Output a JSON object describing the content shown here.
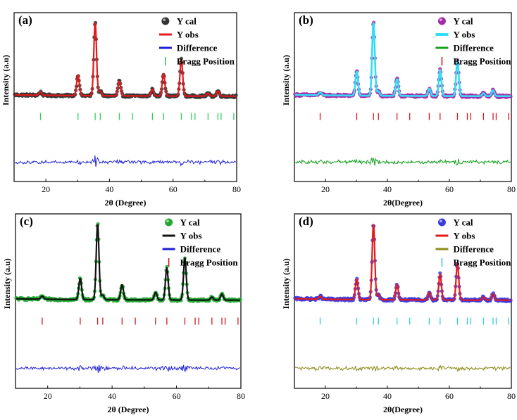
{
  "chart_data": [
    {
      "type": "line",
      "panel_label": "(a)",
      "xlabel": "2θ (Degree)",
      "ylabel": "Intensity (a.u)",
      "xlim": [
        10,
        80
      ],
      "xticks": [
        20,
        40,
        60,
        80
      ],
      "legend_position": "top-right",
      "series": [
        {
          "name": "Y cal",
          "style": "circle",
          "color": "#333333"
        },
        {
          "name": "Y obs",
          "style": "line",
          "color": "#e31a1c"
        },
        {
          "name": "Difference",
          "style": "line",
          "color": "#1f1fd6"
        },
        {
          "name": "Bragg Position",
          "style": "tick",
          "color": "#2ed158"
        }
      ],
      "peaks": [
        {
          "x": 18.3,
          "intensity": 4
        },
        {
          "x": 30.1,
          "intensity": 28
        },
        {
          "x": 35.5,
          "intensity": 100
        },
        {
          "x": 37.1,
          "intensity": 6
        },
        {
          "x": 43.1,
          "intensity": 20
        },
        {
          "x": 53.5,
          "intensity": 9
        },
        {
          "x": 57.0,
          "intensity": 30
        },
        {
          "x": 62.6,
          "intensity": 50
        },
        {
          "x": 71.0,
          "intensity": 4
        },
        {
          "x": 74.1,
          "intensity": 7
        }
      ],
      "bragg_positions": [
        18.3,
        30.1,
        35.5,
        37.1,
        43.1,
        47.2,
        53.5,
        57.0,
        62.6,
        65.8,
        66.9,
        71.0,
        74.1,
        75.1,
        79.1
      ]
    },
    {
      "type": "line",
      "panel_label": "(b)",
      "xlabel": "2θ(Degree)",
      "ylabel": "Intensity (a.u)",
      "xlim": [
        10,
        80
      ],
      "xticks": [
        20,
        40,
        60,
        80
      ],
      "legend_position": "top-right",
      "series": [
        {
          "name": "Y cal",
          "style": "circle",
          "color": "#a12aa8"
        },
        {
          "name": "Y obs",
          "style": "line",
          "color": "#33ddf5"
        },
        {
          "name": "Difference",
          "style": "line",
          "color": "#17a11f"
        },
        {
          "name": "Bragg Position",
          "style": "tick",
          "color": "#d7191c"
        }
      ],
      "peaks": [
        {
          "x": 18.3,
          "intensity": 4
        },
        {
          "x": 30.1,
          "intensity": 33
        },
        {
          "x": 35.5,
          "intensity": 100
        },
        {
          "x": 37.1,
          "intensity": 6
        },
        {
          "x": 43.1,
          "intensity": 23
        },
        {
          "x": 53.5,
          "intensity": 10
        },
        {
          "x": 57.0,
          "intensity": 35
        },
        {
          "x": 62.6,
          "intensity": 48
        },
        {
          "x": 71.0,
          "intensity": 4
        },
        {
          "x": 74.1,
          "intensity": 8
        }
      ],
      "bragg_positions": [
        18.3,
        30.1,
        35.5,
        37.1,
        43.1,
        47.2,
        53.5,
        57.0,
        62.6,
        65.8,
        66.9,
        71.0,
        74.1,
        75.1,
        79.1
      ]
    },
    {
      "type": "line",
      "panel_label": "(c)",
      "xlabel": "2θ (Degree)",
      "ylabel": "Intensity (a.u)",
      "xlim": [
        10,
        80
      ],
      "xticks": [
        20,
        40,
        60,
        80
      ],
      "legend_position": "top-right",
      "series": [
        {
          "name": "Y cal",
          "style": "circle",
          "color": "#22a833"
        },
        {
          "name": "Y obs",
          "style": "line",
          "color": "#111111"
        },
        {
          "name": "Difference",
          "style": "line",
          "color": "#1f1fd6"
        },
        {
          "name": "Bragg Position",
          "style": "tick",
          "color": "#d7191c"
        }
      ],
      "peaks": [
        {
          "x": 18.3,
          "intensity": 4
        },
        {
          "x": 30.1,
          "intensity": 28
        },
        {
          "x": 35.5,
          "intensity": 100
        },
        {
          "x": 37.1,
          "intensity": 6
        },
        {
          "x": 43.1,
          "intensity": 20
        },
        {
          "x": 53.5,
          "intensity": 10
        },
        {
          "x": 57.0,
          "intensity": 42
        },
        {
          "x": 62.6,
          "intensity": 55
        },
        {
          "x": 71.0,
          "intensity": 4
        },
        {
          "x": 74.1,
          "intensity": 8
        }
      ],
      "bragg_positions": [
        18.3,
        30.1,
        35.5,
        37.1,
        43.1,
        47.2,
        53.5,
        57.0,
        62.6,
        65.8,
        66.9,
        71.0,
        74.1,
        75.1,
        79.1
      ]
    },
    {
      "type": "line",
      "panel_label": "(d)",
      "xlabel": "2θ(Degree)",
      "ylabel": "Intensity (a.u)",
      "xlim": [
        10,
        80
      ],
      "xticks": [
        20,
        40,
        60,
        80
      ],
      "legend_position": "top-right",
      "series": [
        {
          "name": "Y cal",
          "style": "circle",
          "color": "#3b3be0"
        },
        {
          "name": "Y obs",
          "style": "line",
          "color": "#e31a1c"
        },
        {
          "name": "Difference",
          "style": "line",
          "color": "#8c8c1a"
        },
        {
          "name": "Bragg Position",
          "style": "tick",
          "color": "#33ccdd"
        }
      ],
      "peaks": [
        {
          "x": 18.3,
          "intensity": 4
        },
        {
          "x": 30.1,
          "intensity": 27
        },
        {
          "x": 35.5,
          "intensity": 100
        },
        {
          "x": 37.1,
          "intensity": 6
        },
        {
          "x": 43.1,
          "intensity": 20
        },
        {
          "x": 53.5,
          "intensity": 10
        },
        {
          "x": 57.0,
          "intensity": 34
        },
        {
          "x": 62.6,
          "intensity": 48
        },
        {
          "x": 71.0,
          "intensity": 4
        },
        {
          "x": 74.1,
          "intensity": 8
        }
      ],
      "bragg_positions": [
        18.3,
        30.1,
        35.5,
        37.1,
        43.1,
        47.2,
        53.5,
        57.0,
        62.6,
        65.8,
        66.9,
        71.0,
        74.1,
        75.1,
        79.1
      ]
    }
  ]
}
